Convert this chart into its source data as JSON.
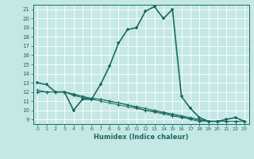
{
  "title": "",
  "xlabel": "Humidex (Indice chaleur)",
  "bg_color": "#c5e8e5",
  "grid_color": "#ffffff",
  "line_color": "#1a6b62",
  "xlim": [
    -0.5,
    23.5
  ],
  "ylim": [
    8.5,
    21.5
  ],
  "yticks": [
    9,
    10,
    11,
    12,
    13,
    14,
    15,
    16,
    17,
    18,
    19,
    20,
    21
  ],
  "xticks": [
    0,
    1,
    2,
    3,
    4,
    5,
    6,
    7,
    8,
    9,
    10,
    11,
    12,
    13,
    14,
    15,
    16,
    17,
    18,
    19,
    20,
    21,
    22,
    23
  ],
  "series": [
    {
      "x": [
        0,
        1,
        2,
        3,
        4,
        5,
        6,
        7,
        8,
        9,
        10,
        11,
        12,
        13,
        14,
        15,
        16,
        17,
        18,
        19,
        20,
        21,
        22,
        23
      ],
      "y": [
        13.0,
        12.8,
        12.0,
        12.0,
        10.0,
        11.2,
        11.2,
        12.8,
        14.8,
        17.3,
        18.8,
        19.0,
        20.8,
        21.3,
        20.0,
        21.0,
        11.5,
        10.2,
        9.2,
        8.8,
        8.8,
        9.0,
        9.2,
        8.8
      ],
      "lw": 1.2,
      "ms": 3.5
    },
    {
      "x": [
        0,
        1,
        2,
        3,
        4,
        5,
        6,
        7,
        8,
        9,
        10,
        11,
        12,
        13,
        14,
        15,
        16,
        17,
        18,
        19,
        20,
        21,
        22,
        23
      ],
      "y": [
        12.0,
        12.0,
        12.0,
        12.0,
        11.8,
        11.5,
        11.3,
        11.2,
        11.0,
        10.8,
        10.6,
        10.4,
        10.2,
        10.0,
        9.8,
        9.6,
        9.4,
        9.2,
        9.0,
        8.8,
        8.8,
        8.8,
        8.8,
        8.8
      ],
      "lw": 0.7,
      "ms": 2.5
    },
    {
      "x": [
        0,
        1,
        2,
        3,
        4,
        5,
        6,
        7,
        8,
        9,
        10,
        11,
        12,
        13,
        14,
        15,
        16,
        17,
        18,
        19,
        20,
        21,
        22,
        23
      ],
      "y": [
        12.0,
        12.0,
        12.0,
        12.0,
        11.6,
        11.4,
        11.2,
        11.0,
        10.8,
        10.6,
        10.4,
        10.2,
        10.0,
        9.8,
        9.6,
        9.4,
        9.2,
        9.0,
        8.8,
        8.8,
        8.8,
        8.8,
        8.8,
        8.8
      ],
      "lw": 0.7,
      "ms": 2.5
    },
    {
      "x": [
        0,
        1,
        2,
        3,
        4,
        5,
        6,
        7,
        8,
        9,
        10,
        11,
        12,
        13,
        14,
        15,
        16,
        17,
        18,
        19,
        20,
        21,
        22,
        23
      ],
      "y": [
        12.2,
        12.0,
        12.0,
        12.0,
        11.7,
        11.5,
        11.3,
        11.2,
        11.0,
        10.8,
        10.6,
        10.3,
        10.0,
        9.9,
        9.7,
        9.5,
        9.3,
        9.1,
        8.9,
        8.8,
        8.8,
        8.8,
        8.8,
        8.8
      ],
      "lw": 0.7,
      "ms": 2.5
    }
  ]
}
